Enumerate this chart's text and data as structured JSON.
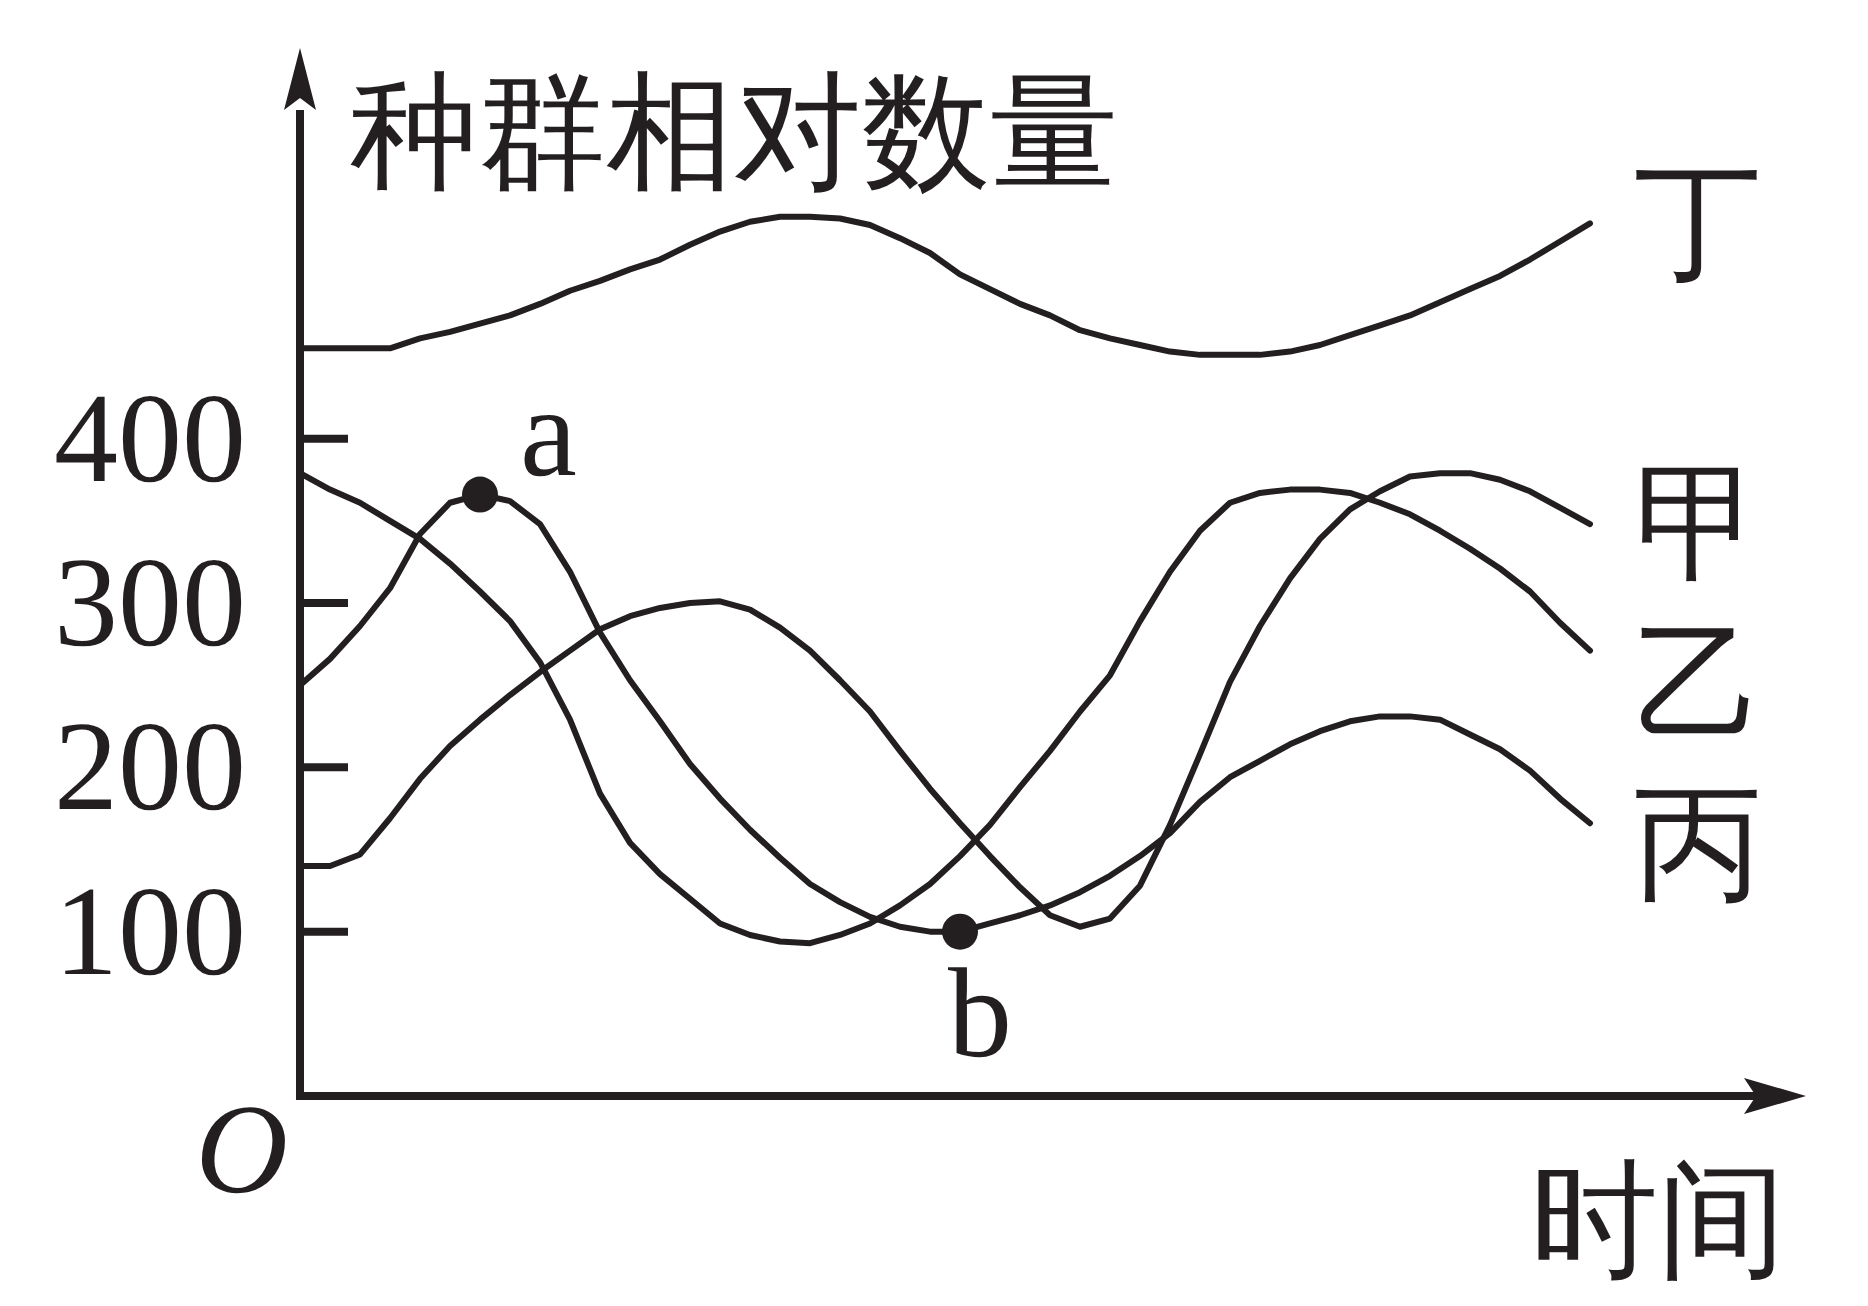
{
  "chart_data": {
    "type": "line",
    "xlabel": "时间",
    "ylabel": "种群相对数量",
    "annotations": [
      "O"
    ],
    "categories": [
      null,
      null,
      null,
      null,
      null,
      null,
      null,
      null,
      null,
      null,
      null,
      null,
      null,
      null,
      null,
      null,
      null,
      null,
      null,
      null,
      null,
      null,
      null,
      null,
      null,
      null,
      null,
      null,
      null,
      null,
      null,
      null,
      null,
      null,
      null,
      null,
      null,
      null,
      null,
      null,
      null,
      null,
      null,
      null
    ],
    "ylim": [
      0,
      600
    ],
    "yticks": [
      100,
      200,
      300,
      400
    ],
    "series": [
      {
        "name": "丁",
        "color": "#231f20",
        "values": [
          455,
          455,
          455,
          455,
          461,
          465,
          470,
          475,
          482,
          490,
          496,
          503,
          509,
          518,
          526,
          532,
          535,
          535,
          534,
          530,
          522,
          513,
          500,
          491,
          482,
          475,
          466,
          461,
          457,
          453,
          451,
          451,
          451,
          453,
          457,
          463,
          469,
          475,
          483,
          491,
          499,
          509,
          520,
          531
        ]
      },
      {
        "name": "甲",
        "color": "#231f20",
        "values": [
          140,
          140,
          147,
          169,
          193,
          213,
          229,
          244,
          258,
          271,
          284,
          292,
          297,
          300,
          301,
          296,
          285,
          271,
          253,
          234,
          210,
          187,
          166,
          146,
          127,
          110,
          103,
          108,
          128,
          165,
          208,
          252,
          286,
          315,
          339,
          357,
          368,
          377,
          379,
          379,
          375,
          368,
          358,
          348
        ]
      },
      {
        "name": "乙",
        "color": "#231f20",
        "values": [
          379,
          369,
          361,
          350,
          339,
          324,
          307,
          289,
          264,
          229,
          184,
          154,
          135,
          120,
          105,
          98,
          94,
          93,
          98,
          105,
          116,
          129,
          146,
          165,
          188,
          210,
          234,
          256,
          289,
          319,
          344,
          361,
          367,
          369,
          369,
          367,
          361,
          354,
          344,
          333,
          321,
          307,
          288,
          271
        ]
      },
      {
        "name": "丙",
        "color": "#231f20",
        "values": [
          250,
          266,
          286,
          309,
          342,
          361,
          366,
          362,
          348,
          319,
          282,
          253,
          228,
          202,
          181,
          162,
          145,
          129,
          118,
          109,
          103,
          100,
          100,
          105,
          110,
          116,
          124,
          134,
          146,
          160,
          179,
          194,
          204,
          214,
          222,
          228,
          231,
          231,
          229,
          220,
          211,
          198,
          181,
          166
        ]
      },
      {
        "name": "a",
        "type": "scatter",
        "marker": "circle",
        "color": "#231f20",
        "values": [
          null,
          null,
          null,
          null,
          null,
          null,
          366,
          null,
          null,
          null,
          null,
          null,
          null,
          null,
          null,
          null,
          null,
          null,
          null,
          null,
          null,
          null,
          null,
          null,
          null,
          null,
          null,
          null,
          null,
          null,
          null,
          null,
          null,
          null,
          null,
          null,
          null,
          null,
          null,
          null,
          null,
          null,
          null,
          null
        ]
      },
      {
        "name": "b",
        "type": "scatter",
        "marker": "circle",
        "color": "#231f20",
        "values": [
          null,
          null,
          null,
          null,
          null,
          null,
          null,
          null,
          null,
          null,
          null,
          null,
          null,
          null,
          null,
          null,
          null,
          null,
          null,
          null,
          null,
          null,
          100,
          null,
          null,
          null,
          null,
          null,
          null,
          null,
          null,
          null,
          null,
          null,
          null,
          null,
          null,
          null,
          null,
          null,
          null,
          null,
          null,
          null
        ]
      }
    ]
  }
}
